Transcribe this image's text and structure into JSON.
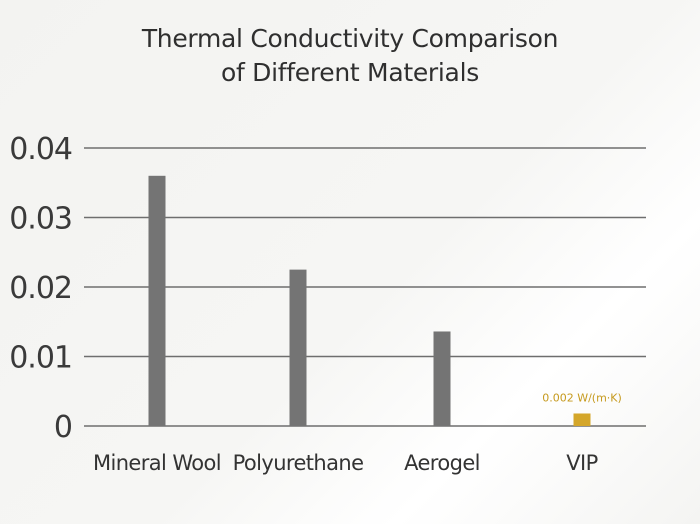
{
  "chart_data": {
    "type": "bar",
    "title": "Thermal Conductivity Comparison",
    "subtitle": "of Different Materials",
    "categories": [
      "Mineral Wool",
      "Polyurethane",
      "Aerogel",
      "VIP"
    ],
    "values": [
      0.036,
      0.0225,
      0.0136,
      0.0018
    ],
    "ylim": [
      0,
      0.04
    ],
    "yticks": [
      "0",
      "0.01",
      "0.02",
      "0.03",
      "0.04"
    ],
    "ytick_values": [
      0,
      0.01,
      0.02,
      0.03,
      0.04
    ],
    "grid": true,
    "colors": [
      "#747474",
      "#747474",
      "#747474",
      "#d4a62a"
    ],
    "annotation": {
      "category": "VIP",
      "text": "0.002 W/(m·K)",
      "color": "#c69a1e"
    }
  }
}
